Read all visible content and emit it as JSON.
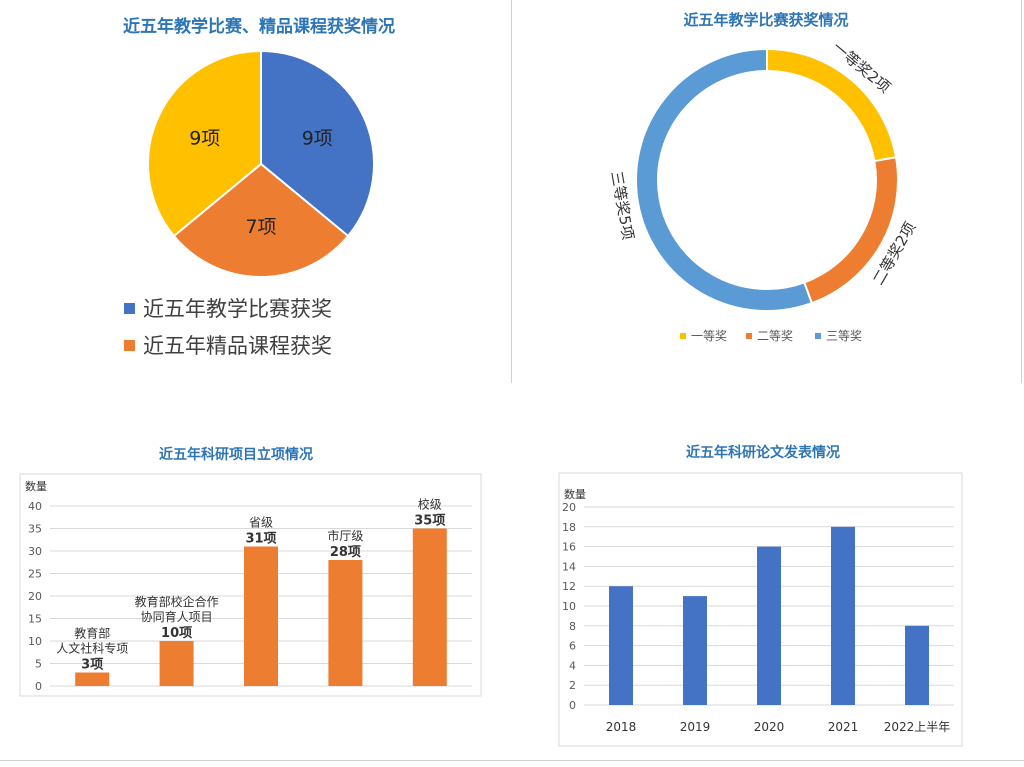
{
  "colors": {
    "blue": "#4472c4",
    "orange": "#ed7d31",
    "gold": "#ffc000",
    "lightblue": "#5b9bd5",
    "title": "#2e75b6",
    "text": "#333333",
    "axis": "#595959",
    "grid": "#d9d9d9"
  },
  "chart_data": [
    {
      "type": "pie",
      "title": "近五年教学比赛、精品课程获奖情况",
      "slices": [
        {
          "name": "近五年教学比赛获奖",
          "value": 9,
          "label": "9项",
          "color": "#4472c4"
        },
        {
          "name": "近五年精品课程获奖",
          "value": 7,
          "label": "7项",
          "color": "#ed7d31"
        },
        {
          "name": "",
          "value": 9,
          "label": "9项",
          "color": "#ffc000"
        }
      ],
      "legend": [
        "近五年教学比赛获奖",
        "近五年精品课程获奖"
      ],
      "legend_position": "bottom"
    },
    {
      "type": "pie",
      "subtype": "doughnut",
      "title": "近五年教学比赛获奖情况",
      "slices": [
        {
          "name": "一等奖",
          "value": 2,
          "label": "一等奖2项",
          "color": "#ffc000"
        },
        {
          "name": "二等奖",
          "value": 2,
          "label": "二等奖2项",
          "color": "#ed7d31"
        },
        {
          "name": "三等奖",
          "value": 5,
          "label": "三等奖5项",
          "color": "#5b9bd5"
        }
      ],
      "legend": [
        "一等奖",
        "二等奖",
        "三等奖"
      ],
      "legend_position": "bottom"
    },
    {
      "type": "bar",
      "title": "近五年科研项目立项情况",
      "ylabel": "数量",
      "ylim": [
        0,
        40
      ],
      "yticks": [
        0,
        5,
        10,
        15,
        20,
        25,
        30,
        35,
        40
      ],
      "categories": [
        "教育部\n人文社科专项",
        "教育部校企合作\n协同育人项目",
        "省级",
        "市厅级",
        "校级"
      ],
      "values": [
        3,
        10,
        31,
        28,
        35
      ],
      "value_labels": [
        "3项",
        "10项",
        "31项",
        "28项",
        "35项"
      ],
      "grid": true,
      "color": "#ed7d31"
    },
    {
      "type": "bar",
      "title": "近五年科研论文发表情况",
      "ylabel": "数量",
      "ylim": [
        0,
        20
      ],
      "yticks": [
        0,
        2,
        4,
        6,
        8,
        10,
        12,
        14,
        16,
        18,
        20
      ],
      "categories": [
        "2018",
        "2019",
        "2020",
        "2021",
        "2022上半年"
      ],
      "values": [
        12,
        11,
        16,
        18,
        8
      ],
      "grid": true,
      "color": "#4472c4"
    }
  ]
}
